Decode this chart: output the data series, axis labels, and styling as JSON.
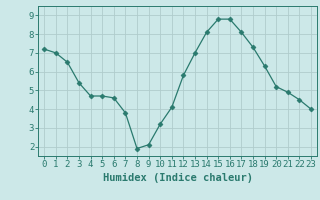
{
  "x": [
    0,
    1,
    2,
    3,
    4,
    5,
    6,
    7,
    8,
    9,
    10,
    11,
    12,
    13,
    14,
    15,
    16,
    17,
    18,
    19,
    20,
    21,
    22,
    23
  ],
  "y": [
    7.2,
    7.0,
    6.5,
    5.4,
    4.7,
    4.7,
    4.6,
    3.8,
    1.9,
    2.1,
    3.2,
    4.1,
    5.8,
    7.0,
    8.1,
    8.8,
    8.8,
    8.1,
    7.3,
    6.3,
    5.2,
    4.9,
    4.5,
    4.0
  ],
  "line_color": "#2a7a6e",
  "marker": "D",
  "marker_size": 2.5,
  "bg_color": "#cce8e8",
  "grid_color": "#b0cccc",
  "xlabel": "Humidex (Indice chaleur)",
  "xlim": [
    -0.5,
    23.5
  ],
  "ylim": [
    1.5,
    9.5
  ],
  "yticks": [
    2,
    3,
    4,
    5,
    6,
    7,
    8,
    9
  ],
  "xticks": [
    0,
    1,
    2,
    3,
    4,
    5,
    6,
    7,
    8,
    9,
    10,
    11,
    12,
    13,
    14,
    15,
    16,
    17,
    18,
    19,
    20,
    21,
    22,
    23
  ],
  "tick_color": "#2a7a6e",
  "label_color": "#2a7a6e",
  "font_size": 6.5,
  "xlabel_fontsize": 7.5
}
